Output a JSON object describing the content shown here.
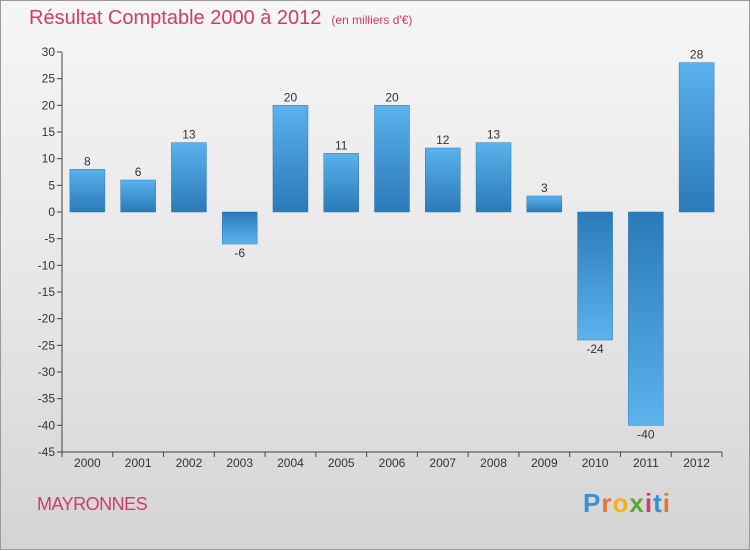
{
  "chart_data": {
    "type": "bar",
    "title": "Résultat Comptable 2000 à 2012",
    "subtitle": "(en milliers d'€)",
    "categories": [
      "2000",
      "2001",
      "2002",
      "2003",
      "2004",
      "2005",
      "2006",
      "2007",
      "2008",
      "2009",
      "2010",
      "2011",
      "2012"
    ],
    "values": [
      8,
      6,
      13,
      -6,
      20,
      11,
      20,
      12,
      13,
      3,
      -24,
      -40,
      28
    ],
    "ylim": [
      -45,
      30
    ],
    "yticks": [
      30,
      25,
      20,
      15,
      10,
      5,
      0,
      -5,
      -10,
      -15,
      -20,
      -25,
      -30,
      -35,
      -40,
      -45
    ],
    "grid": false,
    "legend": "none",
    "colors": {
      "bar_dark": "#2a7ab8",
      "bar_light": "#5bb2ec",
      "title": "#d03b6b"
    }
  },
  "commune": "MAYRONNES",
  "brand": {
    "letters": [
      "P",
      "r",
      "o",
      "x",
      "i",
      "t",
      "i"
    ],
    "colors": [
      "#3a8fd6",
      "#e9742b",
      "#f2b21d",
      "#5aa83c",
      "#d23a6c",
      "#3a8fd6",
      "#e9742b"
    ]
  }
}
